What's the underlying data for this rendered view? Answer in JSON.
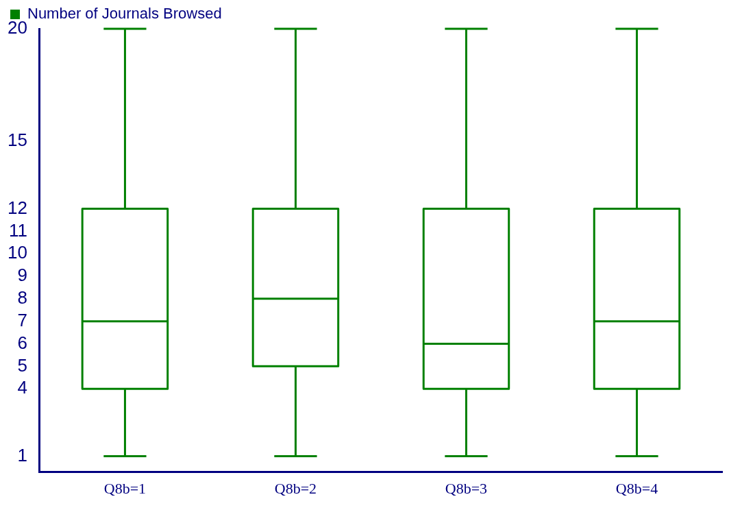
{
  "chart_data": {
    "type": "box",
    "categories": [
      "Q8b=1",
      "Q8b=2",
      "Q8b=3",
      "Q8b=4"
    ],
    "series": [
      {
        "name": "Number of Journals Browsed",
        "color": "#008000",
        "boxes": [
          {
            "low": 1,
            "q1": 4,
            "median": 7,
            "q3": 12,
            "high": 20
          },
          {
            "low": 1,
            "q1": 5,
            "median": 8,
            "q3": 12,
            "high": 20
          },
          {
            "low": 1,
            "q1": 4,
            "median": 6,
            "q3": 12,
            "high": 20
          },
          {
            "low": 1,
            "q1": 4,
            "median": 7,
            "q3": 12,
            "high": 20
          }
        ]
      }
    ],
    "ylim": [
      0.3,
      20
    ],
    "yticks": [
      1,
      4,
      5,
      6,
      7,
      8,
      9,
      10,
      11,
      12,
      15,
      20
    ],
    "grid": false,
    "legend": "top left"
  }
}
